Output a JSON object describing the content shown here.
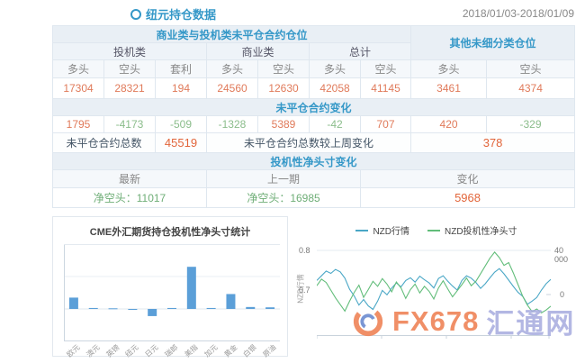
{
  "header": {
    "title": "纽元持仓数据",
    "date_range": "2018/01/03-2018/01/09"
  },
  "table": {
    "group_left": "商业类与投机类未平仓合约仓位",
    "group_right": "其他未细分类仓位",
    "subgroups": [
      "投机类",
      "商业类",
      "总计"
    ],
    "col_headers": [
      "多头",
      "空头",
      "套利",
      "多头",
      "空头",
      "多头",
      "空头",
      "多头",
      "空头"
    ],
    "open_interest": [
      "17304",
      "28321",
      "194",
      "24560",
      "12630",
      "42058",
      "41145",
      "3461",
      "4374"
    ],
    "change_header": "未平仓合约变化",
    "changes": [
      "1795",
      "-4173",
      "-509",
      "-1328",
      "5389",
      "-42",
      "707",
      "420",
      "-329"
    ],
    "total_label": "未平仓合约总数",
    "total_value": "45519",
    "total_change_label": "未平仓合约总数较上周变化",
    "total_change_value": "378",
    "net_header": "投机性净头寸变化",
    "net_cols": [
      "最新",
      "上一期",
      "变化"
    ],
    "net_latest": "净空头：11017",
    "net_previous": "净空头：16985",
    "net_change": "5968"
  },
  "chart_data": [
    {
      "type": "bar",
      "title": "CME外汇期货持仓投机性净头寸统计",
      "categories": [
        "欧元",
        "澳元",
        "英镑",
        "纽元",
        "日元",
        "瑞郎",
        "美指",
        "加元",
        "黄金",
        "白银",
        "原油"
      ],
      "values": [
        35000,
        3000,
        2000,
        -2000,
        -22000,
        3000,
        130000,
        3000,
        46000,
        6000,
        5000
      ],
      "ylim": [
        -100000,
        200000
      ],
      "grid_step": 100000,
      "y_tick_labels_visible": false,
      "color": "#5b9fd8",
      "xlabel": "",
      "ylabel": ""
    },
    {
      "type": "line",
      "title": "",
      "legend": [
        "NZD行情",
        "NZD投机性净头寸"
      ],
      "y_axis_left": {
        "label": "NZD行情",
        "ticks": [
          "0.8",
          "0.7"
        ]
      },
      "y_axis_right": {
        "ticks": [
          "40 000",
          "0"
        ]
      },
      "plot_domain": {
        "left": [
          0.584,
          0.8114
        ],
        "right": [
          -37500,
          44100
        ]
      },
      "series": [
        {
          "name": "NZD行情",
          "axis": "left",
          "color": "#4aa7c6",
          "values": [
            0.724,
            0.736,
            0.748,
            0.742,
            0.752,
            0.746,
            0.73,
            0.702,
            0.685,
            0.662,
            0.676,
            0.66,
            0.651,
            0.672,
            0.699,
            0.688,
            0.705,
            0.718,
            0.708,
            0.724,
            0.731,
            0.72,
            0.735,
            0.726,
            0.718,
            0.705,
            0.729,
            0.736,
            0.722,
            0.71,
            0.7,
            0.724,
            0.736,
            0.73,
            0.719,
            0.704,
            0.716,
            0.731,
            0.745,
            0.754,
            0.741,
            0.725,
            0.709,
            0.694,
            0.684,
            0.664,
            0.672,
            0.681,
            0.7,
            0.716,
            0.727
          ]
        },
        {
          "name": "NZD投机性净头寸",
          "axis": "right",
          "color": "#62bd7a",
          "values": [
            8000,
            14000,
            11000,
            4000,
            -3000,
            -9000,
            -15000,
            -6000,
            2000,
            8500,
            -2500,
            4500,
            12000,
            7500,
            14500,
            9500,
            2500,
            11500,
            6000,
            -3500,
            4500,
            9500,
            1500,
            7500,
            3000,
            -4000,
            6000,
            12500,
            5000,
            -2000,
            3500,
            9000,
            15000,
            8000,
            12000,
            19000,
            26000,
            33000,
            38500,
            33500,
            26500,
            29000,
            19500,
            9000,
            -1500,
            -9500,
            -15500,
            -13000,
            -16500,
            -14000,
            -10500
          ]
        }
      ]
    }
  ],
  "watermark": {
    "fx678": "FX678",
    "huitong": "汇通网"
  },
  "colors": {
    "accent": "#3598c8",
    "positive": "#e07a5a",
    "negative": "#8bbd8b",
    "emphasis": "#e2653a",
    "bar": "#5b9fd8",
    "line_price": "#4aa7c6",
    "line_net": "#62bd7a",
    "border": "#dfe7ef"
  }
}
